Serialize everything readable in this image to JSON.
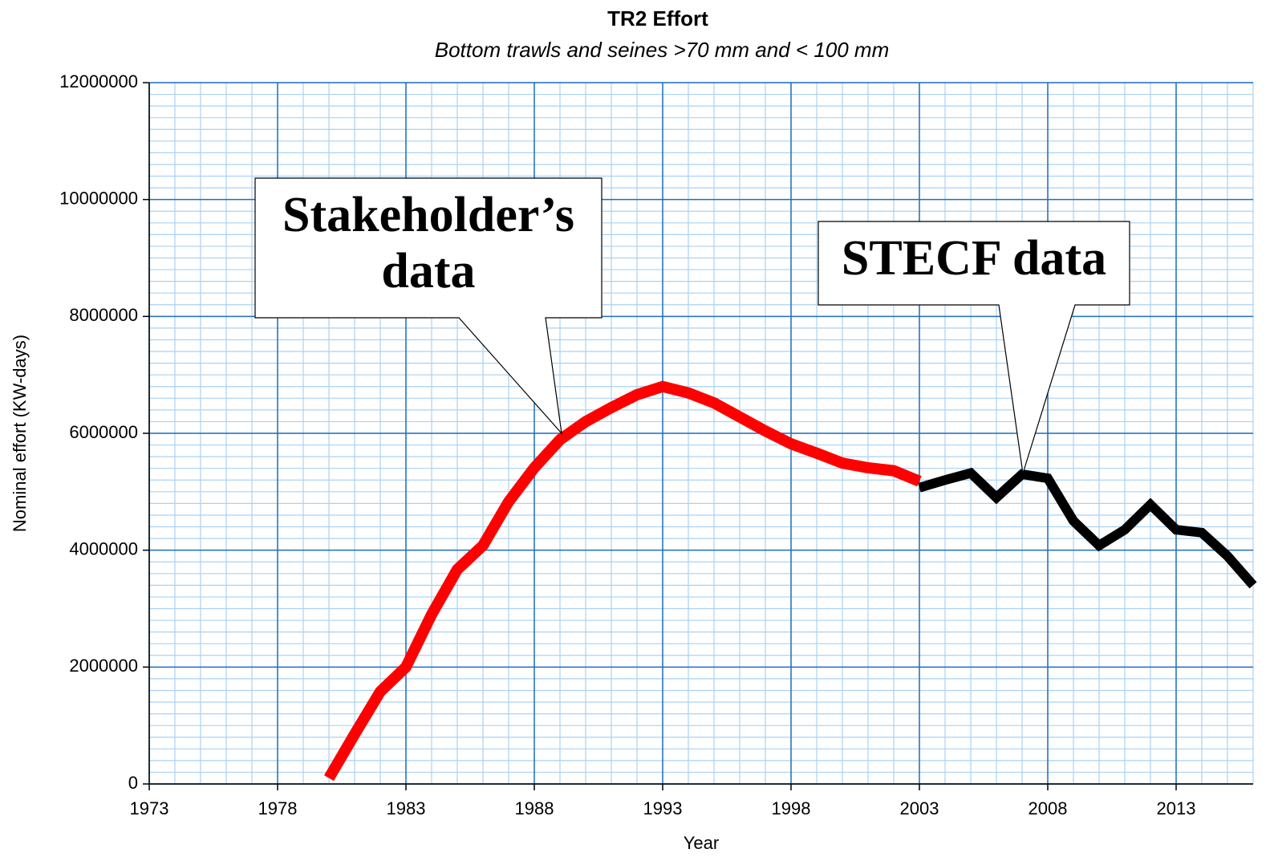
{
  "chart_data": {
    "type": "line",
    "title": "TR2 Effort",
    "subtitle": "Bottom trawls and seines >70 mm and < 100 mm",
    "x_label": "Year",
    "y_label": "Nominal effort (KW-days)",
    "xlim": [
      1973,
      2016
    ],
    "xticks": [
      1973,
      1978,
      1983,
      1988,
      1993,
      1998,
      2003,
      2008,
      2013
    ],
    "ylim": [
      0,
      12000000
    ],
    "yticks": [
      0,
      2000000,
      4000000,
      6000000,
      8000000,
      10000000,
      12000000
    ],
    "grid": true,
    "series": [
      {
        "color": "#ff0000",
        "x": [
          1980,
          1981,
          1982,
          1983,
          1984,
          1985,
          1986,
          1987,
          1988,
          1989,
          1990,
          1991,
          1992,
          1993,
          1994,
          1995,
          1996,
          1997,
          1998,
          1999,
          2000,
          2001,
          2002,
          2003
        ],
        "values": [
          100000,
          850000,
          1580000,
          2000000,
          2900000,
          3670000,
          4080000,
          4830000,
          5410000,
          5890000,
          6200000,
          6440000,
          6660000,
          6800000,
          6690000,
          6520000,
          6280000,
          6040000,
          5820000,
          5660000,
          5490000,
          5410000,
          5360000,
          5180000
        ]
      },
      {
        "color": "#000000",
        "x": [
          2003,
          2004,
          2005,
          2006,
          2007,
          2008,
          2009,
          2010,
          2011,
          2012,
          2013,
          2014,
          2015,
          2016
        ],
        "values": [
          5070000,
          5200000,
          5320000,
          4900000,
          5300000,
          5230000,
          4500000,
          4080000,
          4350000,
          4780000,
          4350000,
          4300000,
          3900000,
          3400000
        ]
      }
    ],
    "annotations": [
      {
        "lines": [
          "Stakeholder’s",
          "data"
        ]
      },
      {
        "lines": [
          "STECF data"
        ]
      }
    ]
  }
}
